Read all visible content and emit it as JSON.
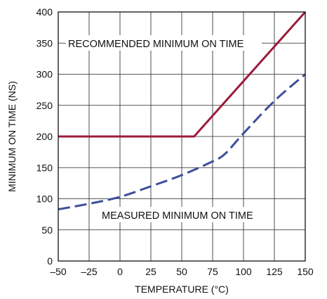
{
  "chart_data": {
    "type": "line",
    "xlabel": "TEMPERATURE (°C)",
    "ylabel": "MINIMUM ON TIME (NS)",
    "xlim": [
      -50,
      150
    ],
    "ylim": [
      0,
      400
    ],
    "grid": true,
    "xticks": [
      -50,
      -25,
      0,
      25,
      50,
      75,
      100,
      125,
      150
    ],
    "xtick_labels": [
      "–50",
      "–25",
      "0",
      "25",
      "50",
      "75",
      "100",
      "125",
      "150"
    ],
    "yticks": [
      0,
      50,
      100,
      150,
      200,
      250,
      300,
      350,
      400
    ],
    "ytick_labels": [
      "0",
      "50",
      "100",
      "150",
      "200",
      "250",
      "300",
      "350",
      "400"
    ],
    "series": [
      {
        "name": "RECOMMENDED MINIMUM ON TIME",
        "color": "#9b1b3b",
        "style": "solid",
        "x": [
          -50,
          60,
          150
        ],
        "y": [
          200,
          200,
          400
        ]
      },
      {
        "name": "MEASURED MINIMUM ON TIME",
        "color": "#3d4f9c",
        "style": "dashed",
        "x": [
          -50,
          -25,
          0,
          25,
          50,
          75,
          85,
          100,
          125,
          150
        ],
        "y": [
          83,
          92,
          103,
          120,
          138,
          160,
          172,
          205,
          257,
          300
        ]
      }
    ]
  }
}
